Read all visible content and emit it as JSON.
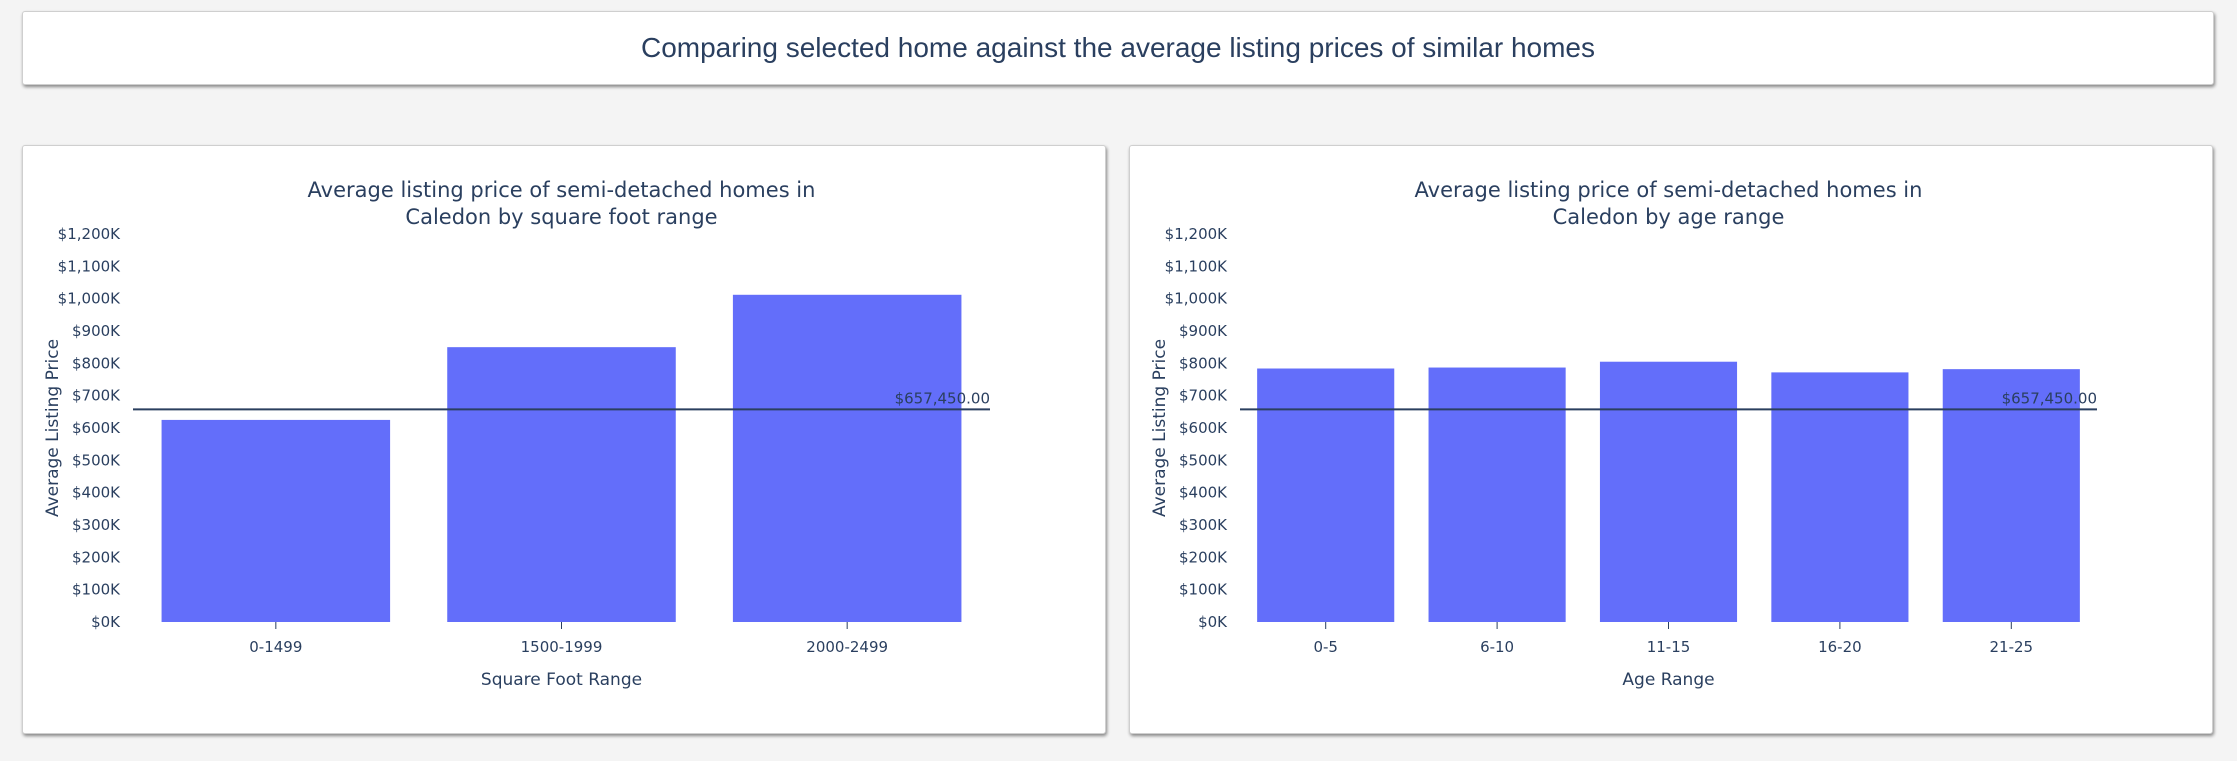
{
  "page_title": "Comparing selected home against the average listing prices of similar homes",
  "colors": {
    "bar": "#636efa",
    "reference_line": "#2a3f5f",
    "text": "#2a3f5f",
    "card_background": "#ffffff",
    "page_background": "#f4f4f4"
  },
  "chart_data": [
    {
      "type": "bar",
      "title_lines": [
        "Average listing price of semi-detached homes in",
        "Caledon by square foot range"
      ],
      "xlabel": "Square Foot Range",
      "ylabel": "Average Listing Price",
      "categories": [
        "0-1499",
        "1500-1999",
        "2000-2499"
      ],
      "values": [
        625000,
        850000,
        1012000
      ],
      "ylim": [
        0,
        1200000
      ],
      "yticks": [
        0,
        100000,
        200000,
        300000,
        400000,
        500000,
        600000,
        700000,
        800000,
        900000,
        1000000,
        1100000,
        1200000
      ],
      "ytick_labels": [
        "$0K",
        "$100K",
        "$200K",
        "$300K",
        "$400K",
        "$500K",
        "$600K",
        "$700K",
        "$800K",
        "$900K",
        "$1,000K",
        "$1,100K",
        "$1,200K"
      ],
      "reference_value": 657450,
      "reference_label": "$657,450.00",
      "grid": false,
      "legend": "none"
    },
    {
      "type": "bar",
      "title_lines": [
        "Average listing price of semi-detached homes in",
        "Caledon by age range"
      ],
      "xlabel": "Age Range",
      "ylabel": "Average Listing Price",
      "categories": [
        "0-5",
        "6-10",
        "11-15",
        "16-20",
        "21-25"
      ],
      "values": [
        784000,
        787000,
        805000,
        772000,
        782000
      ],
      "ylim": [
        0,
        1200000
      ],
      "yticks": [
        0,
        100000,
        200000,
        300000,
        400000,
        500000,
        600000,
        700000,
        800000,
        900000,
        1000000,
        1100000,
        1200000
      ],
      "ytick_labels": [
        "$0K",
        "$100K",
        "$200K",
        "$300K",
        "$400K",
        "$500K",
        "$600K",
        "$700K",
        "$800K",
        "$900K",
        "$1,000K",
        "$1,100K",
        "$1,200K"
      ],
      "reference_value": 657450,
      "reference_label": "$657,450.00",
      "grid": false,
      "legend": "none"
    }
  ]
}
